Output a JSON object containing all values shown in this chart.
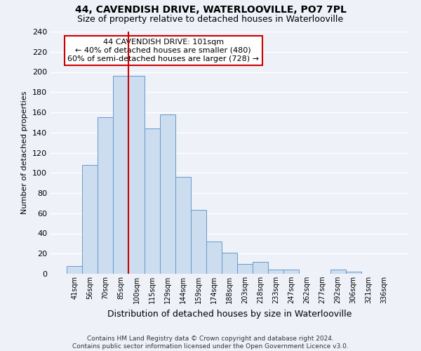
{
  "title": "44, CAVENDISH DRIVE, WATERLOOVILLE, PO7 7PL",
  "subtitle": "Size of property relative to detached houses in Waterlooville",
  "xlabel": "Distribution of detached houses by size in Waterlooville",
  "ylabel": "Number of detached properties",
  "bin_labels": [
    "41sqm",
    "56sqm",
    "70sqm",
    "85sqm",
    "100sqm",
    "115sqm",
    "129sqm",
    "144sqm",
    "159sqm",
    "174sqm",
    "188sqm",
    "203sqm",
    "218sqm",
    "233sqm",
    "247sqm",
    "262sqm",
    "277sqm",
    "292sqm",
    "306sqm",
    "321sqm",
    "336sqm"
  ],
  "bar_values": [
    8,
    108,
    155,
    196,
    196,
    144,
    158,
    96,
    63,
    32,
    21,
    10,
    12,
    4,
    4,
    0,
    0,
    4,
    2,
    0,
    0
  ],
  "bar_color": "#ccddf0",
  "bar_edge_color": "#6699cc",
  "property_line_index": 3,
  "property_line_color": "#cc0000",
  "annotation_title": "44 CAVENDISH DRIVE: 101sqm",
  "annotation_line1": "← 40% of detached houses are smaller (480)",
  "annotation_line2": "60% of semi-detached houses are larger (728) →",
  "annotation_box_color": "#ffffff",
  "annotation_box_edge_color": "#cc0000",
  "ylim": [
    0,
    240
  ],
  "yticks": [
    0,
    20,
    40,
    60,
    80,
    100,
    120,
    140,
    160,
    180,
    200,
    220,
    240
  ],
  "footer_line1": "Contains HM Land Registry data © Crown copyright and database right 2024.",
  "footer_line2": "Contains public sector information licensed under the Open Government Licence v3.0.",
  "bg_color": "#eef2f8",
  "grid_color": "#ffffff",
  "title_fontsize": 10,
  "subtitle_fontsize": 9,
  "ylabel_fontsize": 8,
  "xlabel_fontsize": 9,
  "ytick_fontsize": 8,
  "xtick_fontsize": 7,
  "annotation_fontsize": 8,
  "footer_fontsize": 6.5
}
